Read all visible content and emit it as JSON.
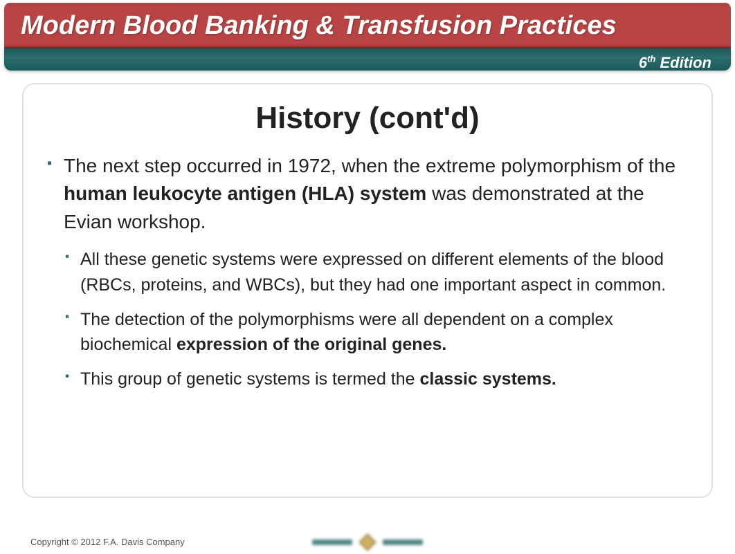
{
  "header": {
    "book_title": "Modern Blood Banking & Transfusion Practices",
    "edition_prefix": "6",
    "edition_suffix": "th",
    "edition_word": " Edition",
    "red_bg": "#b84444",
    "teal_bg": "#2d6d6d",
    "title_color": "#ffffff",
    "title_fontsize": 38
  },
  "slide": {
    "title": "History (cont'd)",
    "title_fontsize": 44,
    "title_color": "#222222",
    "bullet_color": "#2d6d6d",
    "body_color": "#222222",
    "main_fontsize": 28,
    "sub_fontsize": 25,
    "main_bullet": {
      "pre": "The next step occurred in 1972, when the extreme polymorphism of the ",
      "bold": "human leukocyte antigen (HLA) system",
      "post": " was demonstrated at the Evian workshop."
    },
    "subs": [
      {
        "pre": "All these genetic systems were expressed on different elements of the blood (RBCs, proteins, and WBCs), but they had one important aspect in common.",
        "bold": "",
        "post": ""
      },
      {
        "pre": "The detection of the polymorphisms were all dependent on a complex biochemical ",
        "bold": "expression of the original genes.",
        "post": ""
      },
      {
        "pre": "This group of genetic systems is termed the ",
        "bold": "classic systems.",
        "post": ""
      }
    ]
  },
  "footer": {
    "copyright": "Copyright © 2012 F.A. Davis Company",
    "copyright_fontsize": 13,
    "copyright_color": "#555555"
  },
  "frame": {
    "border_color": "#e2e2e2",
    "border_radius": 18,
    "background": "#ffffff"
  }
}
